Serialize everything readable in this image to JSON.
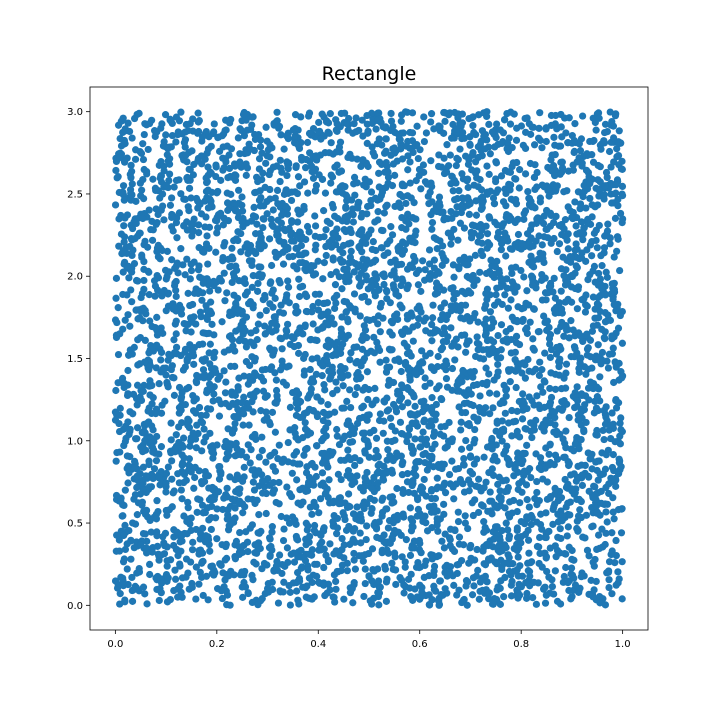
{
  "chart_data": {
    "type": "scatter",
    "title": "Rectangle",
    "xlabel": "",
    "ylabel": "",
    "xlim": [
      -0.05,
      1.05
    ],
    "ylim": [
      -0.15,
      3.15
    ],
    "x_ticks": [
      0.0,
      0.2,
      0.4,
      0.6,
      0.8,
      1.0
    ],
    "x_tick_labels": [
      "0.0",
      "0.2",
      "0.4",
      "0.6",
      "0.8",
      "1.0"
    ],
    "y_ticks": [
      0.0,
      0.5,
      1.0,
      1.5,
      2.0,
      2.5,
      3.0
    ],
    "y_tick_labels": [
      "0.0",
      "0.5",
      "1.0",
      "1.5",
      "2.0",
      "2.5",
      "3.0"
    ],
    "grid": false,
    "legend": "none",
    "marker_color": "#1f77b4",
    "distribution": "uniform",
    "x_range": [
      0,
      1
    ],
    "y_range": [
      0,
      3
    ],
    "n_points": 5000
  }
}
